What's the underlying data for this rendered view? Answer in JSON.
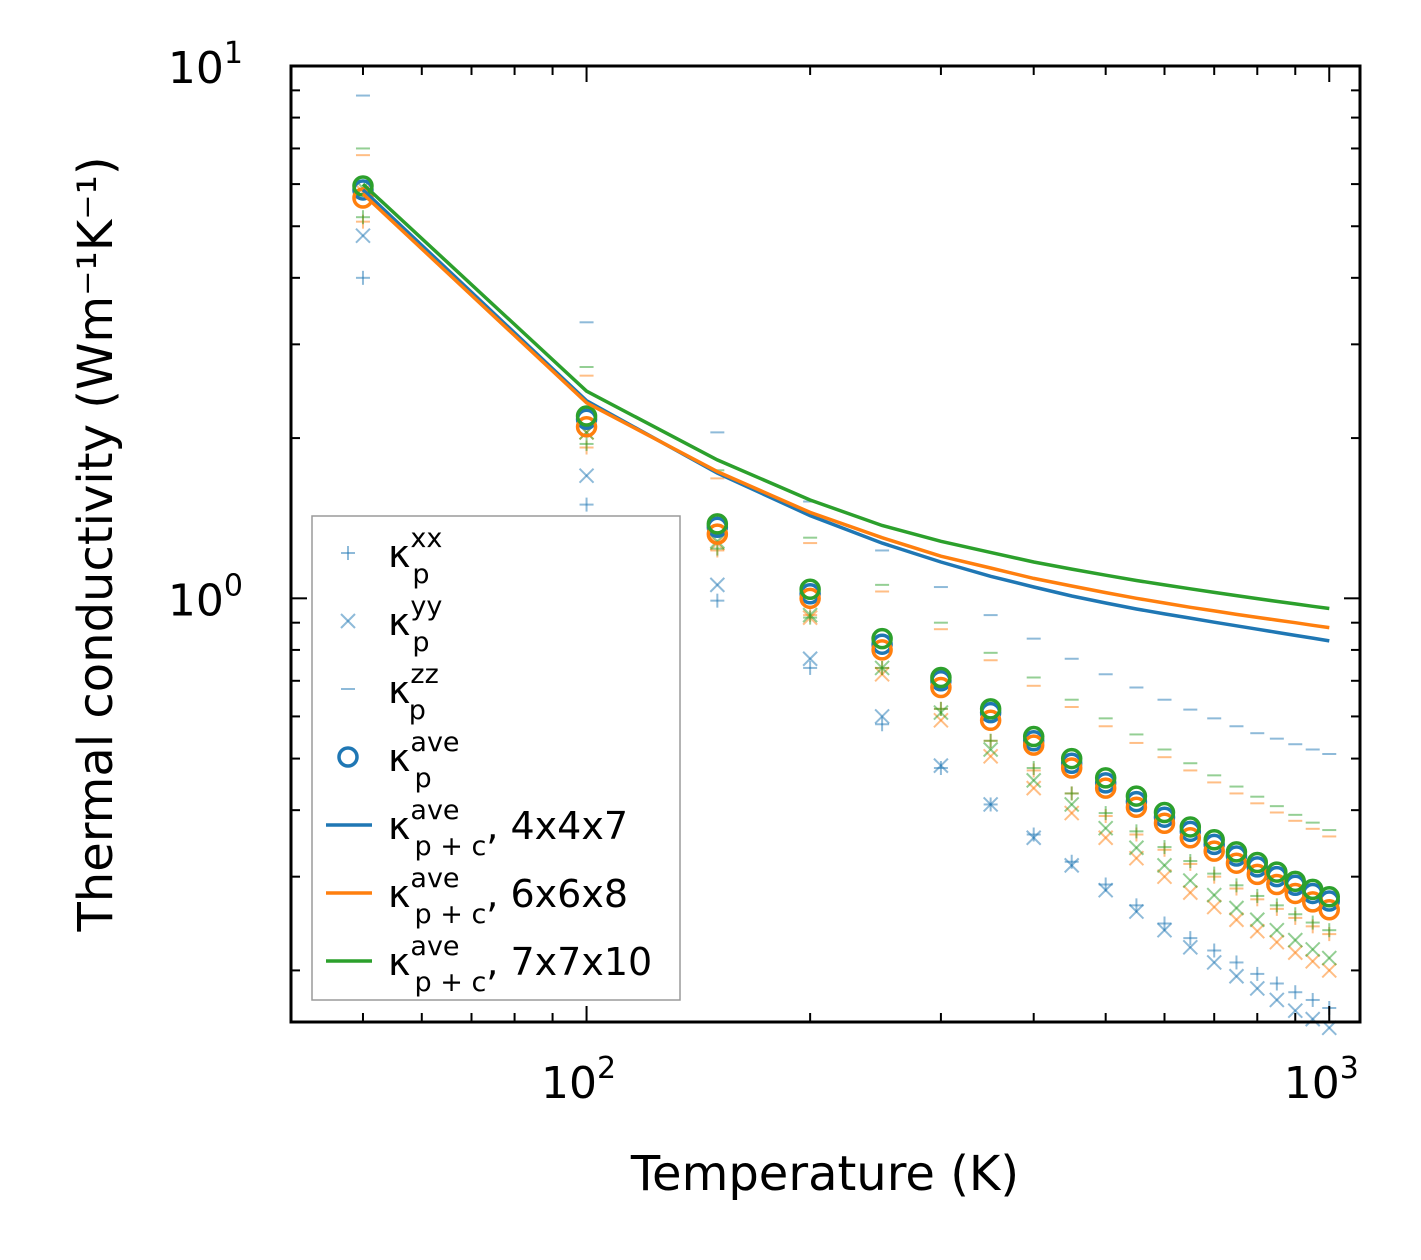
{
  "chart_data": {
    "type": "scatter",
    "title": "",
    "xlabel": "Temperature (K)",
    "ylabel": "Thermal conductivity (Wm⁻¹K⁻¹)",
    "xscale": "log",
    "yscale": "log",
    "xlim": [
      40,
      1100
    ],
    "ylim": [
      0.16,
      10
    ],
    "x_ticks": [
      {
        "value": 100,
        "base": "10",
        "exp": "2"
      },
      {
        "value": 1000,
        "base": "10",
        "exp": "3"
      }
    ],
    "y_ticks": [
      {
        "value": 1,
        "base": "10",
        "exp": "0"
      },
      {
        "value": 10,
        "base": "10",
        "exp": "1"
      }
    ],
    "colors": {
      "blue": "#1f77b4",
      "orange": "#ff7f0e",
      "green": "#2ca02c"
    },
    "legend": {
      "position": "lower-left",
      "entries": [
        {
          "symbol": "+",
          "color": "#1f77b4",
          "kappa": "κ",
          "sub": "p",
          "sup": "xx",
          "suffix": ""
        },
        {
          "symbol": "x",
          "color": "#1f77b4",
          "kappa": "κ",
          "sub": "p",
          "sup": "yy",
          "suffix": ""
        },
        {
          "symbol": "_",
          "color": "#1f77b4",
          "kappa": "κ",
          "sub": "p",
          "sup": "zz",
          "suffix": ""
        },
        {
          "symbol": "o",
          "color": "#1f77b4",
          "kappa": "κ",
          "sub": "p",
          "sup": "ave",
          "suffix": ""
        },
        {
          "symbol": "line",
          "color": "#1f77b4",
          "kappa": "κ",
          "sub": "p + c",
          "sup": "ave",
          "suffix": ", 4x4x7"
        },
        {
          "symbol": "line",
          "color": "#ff7f0e",
          "kappa": "κ",
          "sub": "p + c",
          "sup": "ave",
          "suffix": ", 6x6x8"
        },
        {
          "symbol": "line",
          "color": "#2ca02c",
          "kappa": "κ",
          "sub": "p + c",
          "sup": "ave",
          "suffix": ", 7x7x10"
        }
      ]
    },
    "x": [
      50,
      100,
      150,
      200,
      250,
      300,
      350,
      400,
      450,
      500,
      550,
      600,
      650,
      700,
      750,
      800,
      850,
      900,
      950,
      1000
    ],
    "series": [
      {
        "name": "4x4x7",
        "color": "#1f77b4",
        "kxx": [
          4.0,
          1.5,
          0.99,
          0.74,
          0.58,
          0.48,
          0.41,
          0.36,
          0.32,
          0.29,
          0.265,
          0.245,
          0.23,
          0.218,
          0.207,
          0.197,
          0.189,
          0.182,
          0.176,
          0.17
        ],
        "kyy": [
          4.8,
          1.7,
          1.06,
          0.77,
          0.6,
          0.485,
          0.41,
          0.355,
          0.315,
          0.283,
          0.258,
          0.238,
          0.221,
          0.207,
          0.195,
          0.185,
          0.176,
          0.168,
          0.162,
          0.156
        ],
        "kzz": [
          8.8,
          3.3,
          2.05,
          1.52,
          1.23,
          1.05,
          0.93,
          0.84,
          0.77,
          0.72,
          0.68,
          0.645,
          0.618,
          0.595,
          0.575,
          0.558,
          0.545,
          0.532,
          0.52,
          0.51
        ],
        "kave": [
          5.85,
          2.17,
          1.36,
          1.02,
          0.82,
          0.7,
          0.61,
          0.54,
          0.49,
          0.45,
          0.415,
          0.388,
          0.365,
          0.345,
          0.328,
          0.313,
          0.3,
          0.289,
          0.279,
          0.27
        ],
        "kpc": [
          5.85,
          2.35,
          1.72,
          1.43,
          1.27,
          1.17,
          1.1,
          1.05,
          1.01,
          0.98,
          0.955,
          0.935,
          0.918,
          0.902,
          0.888,
          0.875,
          0.863,
          0.852,
          0.842,
          0.832
        ]
      },
      {
        "name": "6x6x8",
        "color": "#ff7f0e",
        "kxx": [
          5.1,
          1.92,
          1.23,
          0.93,
          0.74,
          0.62,
          0.54,
          0.475,
          0.43,
          0.39,
          0.36,
          0.337,
          0.317,
          0.3,
          0.285,
          0.272,
          0.261,
          0.251,
          0.242,
          0.234
        ],
        "kyy": [
          5.8,
          2.05,
          1.27,
          0.92,
          0.72,
          0.59,
          0.505,
          0.44,
          0.395,
          0.355,
          0.325,
          0.3,
          0.28,
          0.263,
          0.249,
          0.237,
          0.226,
          0.216,
          0.208,
          0.2
        ],
        "kzz": [
          6.8,
          2.62,
          1.68,
          1.27,
          1.03,
          0.875,
          0.765,
          0.685,
          0.625,
          0.575,
          0.535,
          0.503,
          0.475,
          0.451,
          0.43,
          0.412,
          0.396,
          0.382,
          0.369,
          0.357
        ],
        "kave": [
          5.65,
          2.1,
          1.32,
          1.0,
          0.8,
          0.68,
          0.59,
          0.53,
          0.48,
          0.44,
          0.405,
          0.378,
          0.355,
          0.335,
          0.318,
          0.303,
          0.29,
          0.279,
          0.269,
          0.26
        ],
        "kpc": [
          5.75,
          2.33,
          1.73,
          1.45,
          1.3,
          1.2,
          1.14,
          1.09,
          1.055,
          1.025,
          1.0,
          0.98,
          0.962,
          0.947,
          0.933,
          0.921,
          0.91,
          0.9,
          0.89,
          0.881
        ]
      },
      {
        "name": "7x7x10",
        "color": "#2ca02c",
        "kxx": [
          5.2,
          1.95,
          1.24,
          0.92,
          0.74,
          0.62,
          0.54,
          0.48,
          0.43,
          0.395,
          0.365,
          0.341,
          0.321,
          0.304,
          0.289,
          0.276,
          0.265,
          0.255,
          0.246,
          0.238
        ],
        "kyy": [
          5.9,
          2.05,
          1.28,
          0.93,
          0.74,
          0.61,
          0.52,
          0.455,
          0.41,
          0.37,
          0.34,
          0.315,
          0.295,
          0.277,
          0.262,
          0.249,
          0.238,
          0.228,
          0.219,
          0.211
        ],
        "kzz": [
          7.0,
          2.72,
          1.74,
          1.3,
          1.06,
          0.9,
          0.79,
          0.71,
          0.645,
          0.595,
          0.555,
          0.52,
          0.49,
          0.465,
          0.443,
          0.424,
          0.407,
          0.392,
          0.379,
          0.367
        ],
        "kave": [
          5.95,
          2.2,
          1.38,
          1.04,
          0.84,
          0.71,
          0.62,
          0.55,
          0.5,
          0.46,
          0.425,
          0.396,
          0.372,
          0.352,
          0.334,
          0.319,
          0.306,
          0.294,
          0.284,
          0.275
        ],
        "kpc": [
          6.0,
          2.45,
          1.82,
          1.53,
          1.37,
          1.28,
          1.22,
          1.17,
          1.135,
          1.105,
          1.08,
          1.06,
          1.042,
          1.026,
          1.012,
          0.999,
          0.987,
          0.976,
          0.966,
          0.957
        ]
      }
    ]
  }
}
